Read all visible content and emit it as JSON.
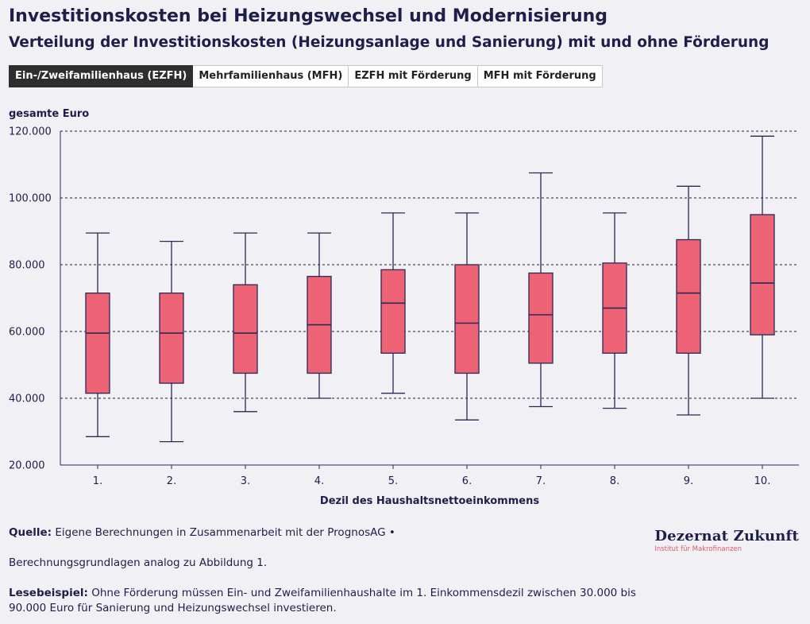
{
  "header": {
    "title": "Investitionskosten bei Heizungswechsel und Modernisierung",
    "subtitle": "Verteilung der Investitionskosten (Heizungsanlage und Sanierung) mit und ohne Förderung"
  },
  "tabs": [
    {
      "label": "Ein-/Zweifamilienhaus (EZFH)",
      "active": true
    },
    {
      "label": "Mehrfamilienhaus (MFH)",
      "active": false
    },
    {
      "label": "EZFH mit Förderung",
      "active": false
    },
    {
      "label": "MFH mit Förderung",
      "active": false
    }
  ],
  "colors": {
    "box_fill": "#ee6276",
    "line": "#2a2a55",
    "grid": "#1e1e4a",
    "text": "#1e1e4a"
  },
  "chart_data": {
    "type": "box",
    "ylabel": "gesamte Euro",
    "xlabel": "Dezil des Haushaltsnettoeinkommens",
    "ylim": [
      20000,
      120000
    ],
    "yticks": [
      20000,
      40000,
      60000,
      80000,
      100000,
      120000
    ],
    "ytick_labels": [
      "20.000",
      "40.000",
      "60.000",
      "80.000",
      "100.000",
      "120.000"
    ],
    "grid": "dotted horizontal",
    "categories": [
      "1.",
      "2.",
      "3.",
      "4.",
      "5.",
      "6.",
      "7.",
      "8.",
      "9.",
      "10."
    ],
    "series": [
      {
        "name": "EZFH",
        "boxes": [
          {
            "min": 28500,
            "q1": 41500,
            "median": 59500,
            "q3": 71500,
            "max": 89500
          },
          {
            "min": 27000,
            "q1": 44500,
            "median": 59500,
            "q3": 71500,
            "max": 87000
          },
          {
            "min": 36000,
            "q1": 47500,
            "median": 59500,
            "q3": 74000,
            "max": 89500
          },
          {
            "min": 40000,
            "q1": 47500,
            "median": 62000,
            "q3": 76500,
            "max": 89500
          },
          {
            "min": 41500,
            "q1": 53500,
            "median": 68500,
            "q3": 78500,
            "max": 95500
          },
          {
            "min": 33500,
            "q1": 47500,
            "median": 62500,
            "q3": 80000,
            "max": 95500
          },
          {
            "min": 37500,
            "q1": 50500,
            "median": 65000,
            "q3": 77500,
            "max": 107500
          },
          {
            "min": 37000,
            "q1": 53500,
            "median": 67000,
            "q3": 80500,
            "max": 95500
          },
          {
            "min": 35000,
            "q1": 53500,
            "median": 71500,
            "q3": 87500,
            "max": 103500
          },
          {
            "min": 40000,
            "q1": 59000,
            "median": 74500,
            "q3": 95000,
            "max": 118500
          }
        ]
      }
    ]
  },
  "footer": {
    "source_label": "Quelle:",
    "source_text": "Eigene Berechnungen in Zusammenarbeit mit der PrognosAG •",
    "basis_text": "Berechnungsgrundlagen analog zu Abbildung 1.",
    "example_label": "Lesebeispiel:",
    "example_text": "Ohne Förderung müssen Ein- und Zweifamilienhaushalte im 1. Einkommensdezil zwischen 30.000 bis 90.000 Euro für Sanierung und Heizungswechsel investieren."
  },
  "logo": {
    "name": "Dezernat Zukunft",
    "tagline": "Institut für Makrofinanzen"
  }
}
